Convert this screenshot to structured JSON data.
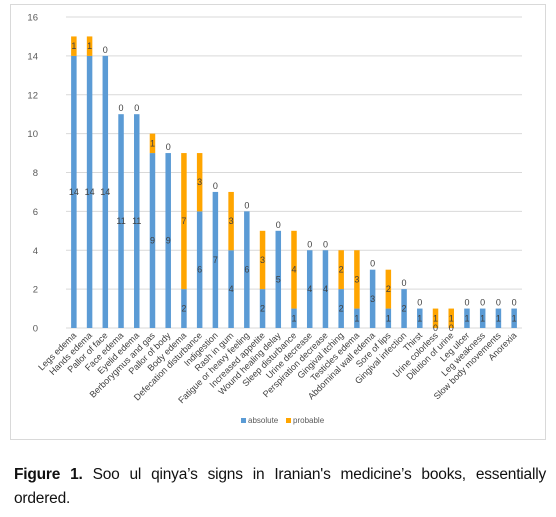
{
  "chart_data": {
    "type": "bar",
    "stacked": true,
    "categories": [
      "Legs edema",
      "Hands edema",
      "Pallor of face",
      "Face edema",
      "Eyelid edema",
      "Berborygmus and gas",
      "Pallor of body",
      "Body edema",
      "Defecation disturbance",
      "Indigestion",
      "Rash in gum",
      "Fatigue or heavy feeling",
      "Increased appetite",
      "Wound healing delay",
      "Sleep disturbance",
      "Urine decrease",
      "Perspiration decrease",
      "Gingival itching",
      "Testicles edema",
      "Abdominal wall edema",
      "Sore of lips",
      "Gingival infection",
      "Thirst",
      "Urine colorless",
      "Dilution of urine",
      "Leg ulcer",
      "Leg weakness",
      "Slow body movements",
      "Anorexia"
    ],
    "series": [
      {
        "name": "absolute",
        "color": "#5b9bd5",
        "values": [
          14,
          14,
          14,
          11,
          11,
          9,
          9,
          2,
          6,
          7,
          4,
          6,
          2,
          5,
          1,
          4,
          4,
          2,
          1,
          3,
          1,
          2,
          1,
          0,
          0,
          1,
          1,
          1,
          1
        ]
      },
      {
        "name": "probable",
        "color": "#ffa500",
        "values": [
          1,
          1,
          0,
          0,
          0,
          1,
          0,
          7,
          3,
          0,
          3,
          0,
          3,
          0,
          4,
          0,
          0,
          2,
          3,
          0,
          2,
          0,
          0,
          1,
          1,
          0,
          0,
          0,
          0
        ]
      }
    ],
    "ylim": [
      0,
      16
    ],
    "yticks": [
      0,
      2,
      4,
      6,
      8,
      10,
      12,
      14,
      16
    ],
    "grid": true,
    "legend_position": "bottom"
  },
  "caption": {
    "label": "Figure 1.",
    "text": "Soo ul qinya’s signs in Iranian's medicine’s books, essentially ordered."
  }
}
